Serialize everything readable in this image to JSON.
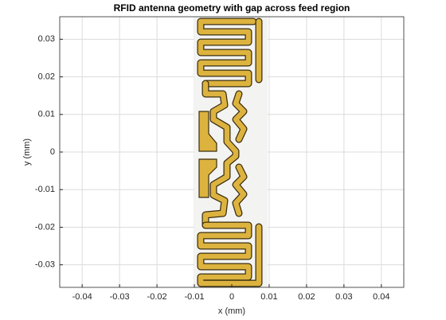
{
  "chart_data": {
    "type": "patch",
    "title": "RFID antenna geometry with gap across feed region",
    "x_label": "x (mm)",
    "y_label": "y (mm)",
    "xlim": [
      -0.046,
      0.046
    ],
    "xticks": [
      -0.04,
      -0.03,
      -0.02,
      -0.01,
      0,
      0.01,
      0.02,
      0.03,
      0.04
    ],
    "ylim": [
      -0.036,
      0.036
    ],
    "yticks": [
      -0.03,
      -0.02,
      -0.01,
      0,
      0.01,
      0.02,
      0.03
    ],
    "grid": true,
    "color": "#ddb33f"
  }
}
